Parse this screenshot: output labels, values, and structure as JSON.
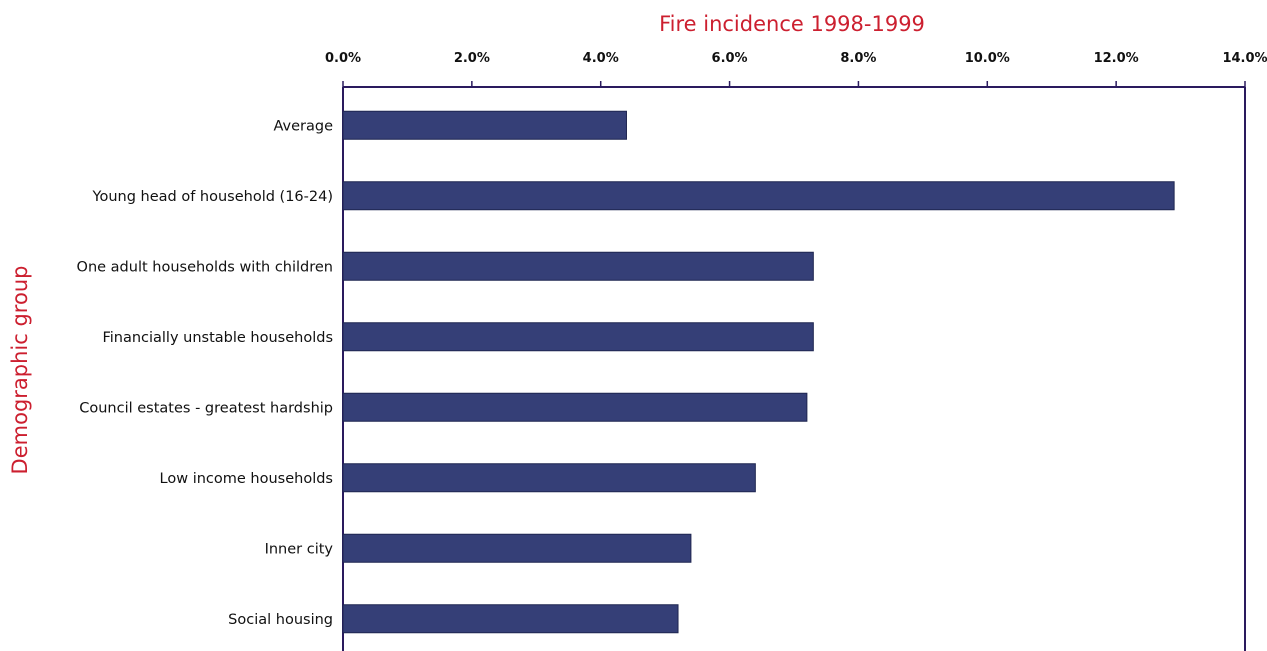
{
  "chart_data": {
    "type": "bar",
    "orientation": "horizontal",
    "title": "Fire incidence 1998-1999",
    "ylabel": "Demographic group",
    "xlabel": "",
    "xlim": [
      0,
      14
    ],
    "tick_values": [
      0,
      2,
      4,
      6,
      8,
      10,
      12,
      14
    ],
    "tick_labels": [
      "0.0%",
      "2.0%",
      "4.0%",
      "6.0%",
      "8.0%",
      "10.0%",
      "12.0%",
      "14.0%"
    ],
    "categories": [
      "Average",
      "Young head of household (16-24)",
      "One adult households with children",
      "Financially unstable households",
      "Council estates - greatest hardship",
      "Low income households",
      "Inner city",
      "Social housing"
    ],
    "values": [
      4.4,
      12.9,
      7.3,
      7.3,
      7.2,
      6.4,
      5.4,
      5.2
    ],
    "axis_position": "top",
    "grid": false,
    "colors": {
      "bar": "#353f77",
      "axis": "#2a1a5e",
      "title": "#cc1f2f"
    }
  }
}
